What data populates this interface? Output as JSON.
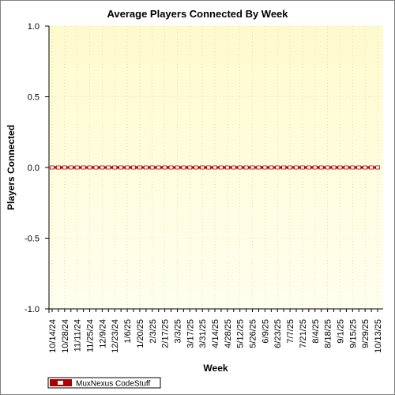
{
  "chart_data": {
    "type": "line",
    "title": "Average Players Connected By Week",
    "xlabel": "Week",
    "ylabel": "Players Connected",
    "ylim": [
      -1.0,
      1.0
    ],
    "yticks": [
      "1.0",
      "0.5",
      "0.0",
      "-0.5",
      "-1.0"
    ],
    "ytick_values": [
      1.0,
      0.5,
      0.0,
      -0.5,
      -1.0
    ],
    "x": [
      "10/14/24",
      "10/21/24",
      "10/28/24",
      "11/4/24",
      "11/11/24",
      "11/18/24",
      "11/25/24",
      "12/2/24",
      "12/9/24",
      "12/16/24",
      "12/23/24",
      "12/30/24",
      "1/6/25",
      "1/13/25",
      "1/20/25",
      "1/27/25",
      "2/3/25",
      "2/10/25",
      "2/17/25",
      "2/24/25",
      "3/3/25",
      "3/10/25",
      "3/17/25",
      "3/24/25",
      "3/31/25",
      "4/7/25",
      "4/14/25",
      "4/21/25",
      "4/28/25",
      "5/5/25",
      "5/12/25",
      "5/19/25",
      "5/26/25",
      "6/2/25",
      "6/9/25",
      "6/16/25",
      "6/23/25",
      "6/30/25",
      "7/7/25",
      "7/14/25",
      "7/21/25",
      "7/28/25",
      "8/4/25",
      "8/11/25",
      "8/18/25",
      "8/25/25",
      "9/1/25",
      "9/8/25",
      "9/15/25",
      "9/22/25",
      "9/29/25",
      "10/6/25",
      "10/13/25"
    ],
    "labeled_x": [
      "10/14/24",
      "10/28/24",
      "11/11/24",
      "11/25/24",
      "12/9/24",
      "12/23/24",
      "1/6/25",
      "1/20/25",
      "2/3/25",
      "2/17/25",
      "3/3/25",
      "3/17/25",
      "3/31/25",
      "4/14/25",
      "4/28/25",
      "5/12/25",
      "5/26/25",
      "6/9/25",
      "6/23/25",
      "7/7/25",
      "7/21/25",
      "8/4/25",
      "8/18/25",
      "9/1/25",
      "9/15/25",
      "9/29/25",
      "10/13/25"
    ],
    "series": [
      {
        "name": "MuxNexus CodeStuff",
        "color": "#aa0000",
        "values": [
          0,
          0,
          0,
          0,
          0,
          0,
          0,
          0,
          0,
          0,
          0,
          0,
          0,
          0,
          0,
          0,
          0,
          0,
          0,
          0,
          0,
          0,
          0,
          0,
          0,
          0,
          0,
          0,
          0,
          0,
          0,
          0,
          0,
          0,
          0,
          0,
          0,
          0,
          0,
          0,
          0,
          0,
          0,
          0,
          0,
          0,
          0,
          0,
          0,
          0,
          0,
          0,
          0
        ]
      }
    ],
    "grid": true,
    "legend_position": "bottom-left",
    "colors": {
      "series": "#aa0000",
      "plot_bg_top": "#fffacd",
      "plot_bg_bottom": "#ffffee",
      "grid": "#c8c8a0"
    }
  }
}
